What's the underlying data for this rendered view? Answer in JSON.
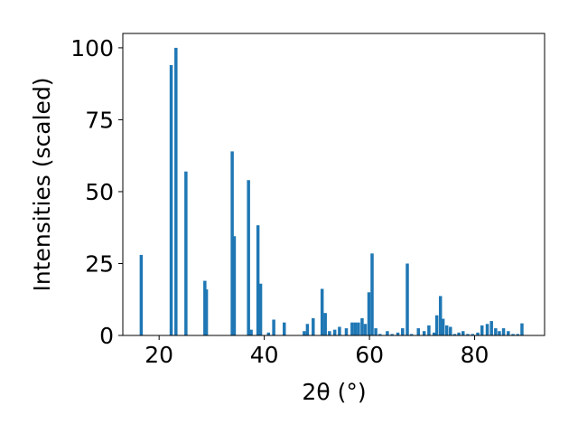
{
  "chart_data": {
    "type": "bar",
    "xlabel": "2θ (°)",
    "ylabel": "Intensities (scaled)",
    "xlim": [
      13.1,
      93.3
    ],
    "ylim": [
      0,
      105
    ],
    "xticks": [
      20,
      40,
      60,
      80
    ],
    "yticks": [
      0,
      25,
      50,
      75,
      100
    ],
    "bar_color": "#1f77b4",
    "bar_width": 0.6,
    "grid": false,
    "x": [
      16.6,
      22.3,
      23.2,
      25.1,
      28.7,
      29.0,
      33.9,
      34.3,
      37.0,
      37.5,
      38.8,
      39.3,
      40.8,
      41.8,
      43.8,
      47.6,
      48.2,
      49.3,
      51.0,
      51.6,
      52.4,
      53.4,
      54.3,
      55.6,
      56.7,
      57.3,
      57.9,
      58.6,
      59.2,
      59.9,
      60.5,
      61.2,
      62.0,
      63.4,
      64.3,
      65.4,
      66.3,
      67.2,
      68.0,
      69.3,
      70.4,
      71.3,
      72.3,
      72.8,
      73.5,
      74.0,
      74.7,
      75.4,
      76.2,
      77.0,
      77.8,
      78.7,
      79.6,
      80.6,
      81.4,
      82.4,
      83.2,
      84.0,
      84.7,
      85.5,
      86.4,
      87.3,
      88.2,
      89.0
    ],
    "values": [
      28,
      94,
      100,
      57,
      19,
      16,
      64,
      34.5,
      54,
      2,
      38.3,
      18,
      1,
      5.5,
      4.5,
      1.5,
      4,
      6,
      16.2,
      7.8,
      1.5,
      2,
      3,
      2.5,
      4.5,
      4.5,
      4.5,
      6,
      4,
      15,
      28.5,
      2.5,
      0.5,
      1.5,
      0.5,
      1,
      2.5,
      25,
      0.5,
      2.5,
      1.5,
      3.5,
      1,
      7,
      13.7,
      5.8,
      3.5,
      3,
      0.5,
      1,
      1.5,
      0.5,
      0.5,
      1,
      3.5,
      4,
      5,
      2.5,
      1.5,
      2.5,
      1.5,
      0.5,
      0.5,
      4.2
    ]
  }
}
